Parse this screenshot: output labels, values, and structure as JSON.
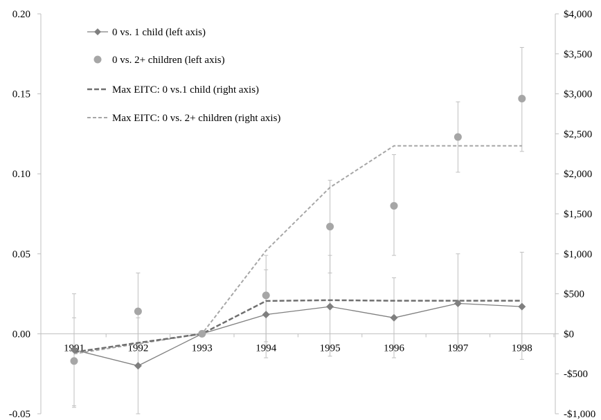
{
  "chart_data": {
    "type": "line",
    "categories": [
      "1991",
      "1992",
      "1993",
      "1994",
      "1995",
      "1996",
      "1997",
      "1998"
    ],
    "left_axis": {
      "ylim": [
        -0.05,
        0.2
      ],
      "ticks": [
        "-0.05",
        "0.00",
        "0.05",
        "0.10",
        "0.15",
        "0.20"
      ],
      "tick_values": [
        -0.05,
        0,
        0.05,
        0.1,
        0.15,
        0.2
      ]
    },
    "right_axis": {
      "ylim": [
        -1000,
        4000
      ],
      "ticks": [
        "-$1,000",
        "-$500",
        "$0",
        "$500",
        "$1,000",
        "$1,500",
        "$2,000",
        "$2,500",
        "$3,000",
        "$3,500",
        "$4,000"
      ],
      "tick_values": [
        -1000,
        -500,
        0,
        500,
        1000,
        1500,
        2000,
        2500,
        3000,
        3500,
        4000
      ]
    },
    "grid": false,
    "legend_position": "top-left",
    "series": [
      {
        "name": "0 vs. 1 child (left axis)",
        "axis": "left",
        "style": "solid-diamond",
        "color": "#7f7f7f",
        "values": [
          -0.01,
          -0.02,
          0.0,
          0.012,
          0.017,
          0.01,
          0.019,
          0.017
        ],
        "ci_low": [
          -0.045,
          -0.05,
          null,
          -0.015,
          -0.014,
          -0.015,
          -0.011,
          -0.016
        ],
        "ci_high": [
          0.025,
          0.01,
          null,
          0.04,
          0.049,
          0.035,
          0.05,
          0.051
        ]
      },
      {
        "name": "0 vs. 2+ children (left axis)",
        "axis": "left",
        "style": "circle-markers",
        "color": "#a6a6a6",
        "values": [
          -0.017,
          0.014,
          0.0,
          0.024,
          0.067,
          0.08,
          0.123,
          0.147
        ],
        "ci_low": [
          -0.046,
          -0.01,
          null,
          -0.005,
          0.038,
          0.049,
          0.101,
          0.114
        ],
        "ci_high": [
          0.01,
          0.038,
          null,
          0.049,
          0.096,
          0.112,
          0.145,
          0.179
        ]
      },
      {
        "name": "Max EITC: 0 vs.1 child (right axis)",
        "axis": "right",
        "style": "dashed-dark",
        "color": "#6e6e6e",
        "values": [
          -230,
          -113,
          0,
          410,
          420,
          413,
          413,
          413
        ]
      },
      {
        "name": "Max EITC: 0 vs. 2+ children (right axis)",
        "axis": "right",
        "style": "dashed-light",
        "color": "#a6a6a6",
        "values": [
          -250,
          -125,
          0,
          1040,
          1830,
          2350,
          2350,
          2350
        ]
      }
    ]
  }
}
